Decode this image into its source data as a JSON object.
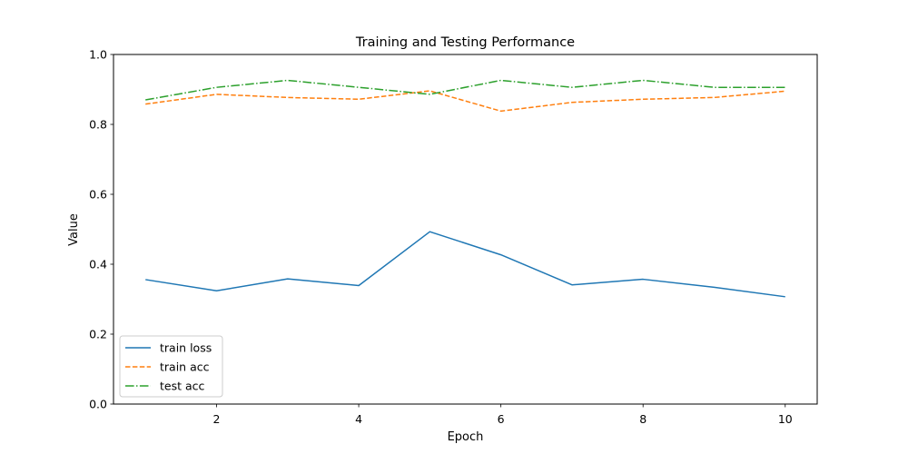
{
  "chart_data": {
    "type": "line",
    "title": "Training and Testing Performance",
    "xlabel": "Epoch",
    "ylabel": "Value",
    "xlim": [
      0.55,
      10.45
    ],
    "ylim": [
      0.0,
      1.0
    ],
    "xticks": [
      2,
      4,
      6,
      8,
      10
    ],
    "yticks": [
      0.0,
      0.2,
      0.4,
      0.6,
      0.8,
      1.0
    ],
    "ytick_labels": [
      "0.0",
      "0.2",
      "0.4",
      "0.6",
      "0.8",
      "1.0"
    ],
    "grid": false,
    "legend_position": "lower-left",
    "x": [
      1,
      2,
      3,
      4,
      5,
      6,
      7,
      8,
      9,
      10
    ],
    "series": [
      {
        "name": "train loss",
        "style": "solid",
        "color": "#1f77b4",
        "values": [
          0.356,
          0.324,
          0.358,
          0.339,
          0.493,
          0.427,
          0.341,
          0.357,
          0.334,
          0.307
        ]
      },
      {
        "name": "train acc",
        "style": "dashed",
        "color": "#ff7f0e",
        "values": [
          0.858,
          0.886,
          0.877,
          0.872,
          0.896,
          0.838,
          0.863,
          0.872,
          0.877,
          0.895
        ]
      },
      {
        "name": "test acc",
        "style": "dashdot",
        "color": "#2ca02c",
        "values": [
          0.87,
          0.906,
          0.926,
          0.906,
          0.886,
          0.926,
          0.906,
          0.926,
          0.906,
          0.906
        ]
      }
    ]
  }
}
